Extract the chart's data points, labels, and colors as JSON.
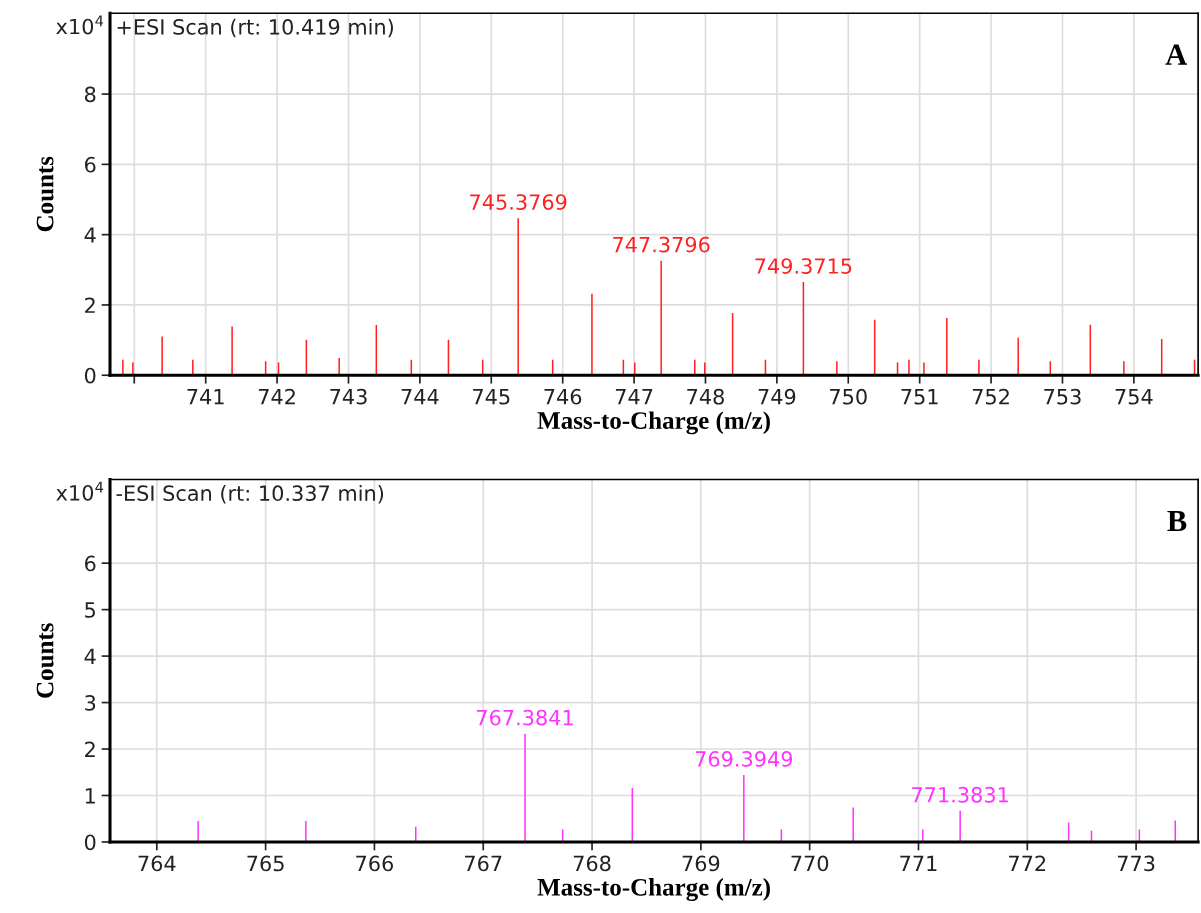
{
  "chart_data": [
    {
      "type": "bar",
      "title": "A",
      "subtitle": "+ESI Scan (rt: 10.419 min)",
      "xlabel": "Mass-to-Charge (m/z)",
      "ylabel": "Counts",
      "x": [
        739.84,
        739.98,
        740.39,
        740.82,
        741.37,
        741.84,
        742.02,
        742.41,
        742.87,
        743.39,
        743.88,
        744.4,
        744.88,
        745.3769,
        745.86,
        746.41,
        746.85,
        747.01,
        747.3796,
        747.85,
        747.99,
        748.38,
        748.84,
        749.3715,
        749.84,
        750.37,
        750.69,
        750.85,
        751.06,
        751.38,
        751.83,
        752.38,
        752.83,
        753.39,
        753.86,
        754.39,
        754.85
      ],
      "series": [
        {
          "color": "#ff2020",
          "values": [
            0.44,
            0.36,
            1.1,
            0.44,
            1.39,
            0.4,
            0.36,
            1.01,
            0.49,
            1.43,
            0.44,
            1.01,
            0.44,
            4.47,
            0.44,
            2.32,
            0.44,
            0.36,
            3.26,
            0.44,
            0.36,
            1.77,
            0.44,
            2.65,
            0.4,
            1.58,
            0.36,
            0.44,
            0.36,
            1.63,
            0.44,
            1.07,
            0.4,
            1.44,
            0.4,
            1.03,
            0.44
          ]
        }
      ],
      "annotations": [
        "x10$^{4}$",
        {
          "text": "745.3769",
          "x": 745.3769,
          "y": 4.47
        },
        {
          "text": "747.3796",
          "x": 747.3796,
          "y": 3.26
        },
        {
          "text": "749.3715",
          "x": 749.3715,
          "y": 2.65
        }
      ],
      "xlim": [
        739.66,
        754.9
      ],
      "ylim": [
        0,
        10.3
      ],
      "xticks": [
        {
          "value": 740,
          "label": null
        },
        741,
        742,
        743,
        744,
        745,
        746,
        747,
        748,
        749,
        750,
        751,
        752,
        753,
        754
      ],
      "yticks": [
        0,
        2,
        4,
        6,
        8
      ],
      "grid": true
    },
    {
      "type": "bar",
      "title": "B",
      "subtitle": "-ESI Scan (rt: 10.337 min)",
      "xlabel": "Mass-to-Charge (m/z)",
      "ylabel": "Counts",
      "x": [
        764.38,
        765.37,
        766.38,
        767.3841,
        767.73,
        768.37,
        769.3949,
        769.74,
        770.4,
        771.04,
        771.3831,
        772.38,
        772.59,
        773.03,
        773.36
      ],
      "series": [
        {
          "color": "#ff33ff",
          "values": [
            0.45,
            0.45,
            0.33,
            2.33,
            0.27,
            1.16,
            1.44,
            0.27,
            0.74,
            0.27,
            0.67,
            0.42,
            0.24,
            0.27,
            0.46
          ]
        }
      ],
      "annotations": [
        "x10$^{4}$",
        {
          "text": "767.3841",
          "x": 767.3841,
          "y": 2.33
        },
        {
          "text": "769.3949",
          "x": 769.3949,
          "y": 1.44
        },
        {
          "text": "771.3831",
          "x": 771.3831,
          "y": 0.67
        }
      ],
      "xlim": [
        763.57,
        773.57
      ],
      "ylim": [
        0,
        7.8
      ],
      "xticks": [
        764,
        765,
        766,
        767,
        768,
        769,
        770,
        771,
        772,
        773
      ],
      "yticks": [
        0,
        1,
        2,
        3,
        4,
        5,
        6
      ],
      "grid": true
    }
  ]
}
